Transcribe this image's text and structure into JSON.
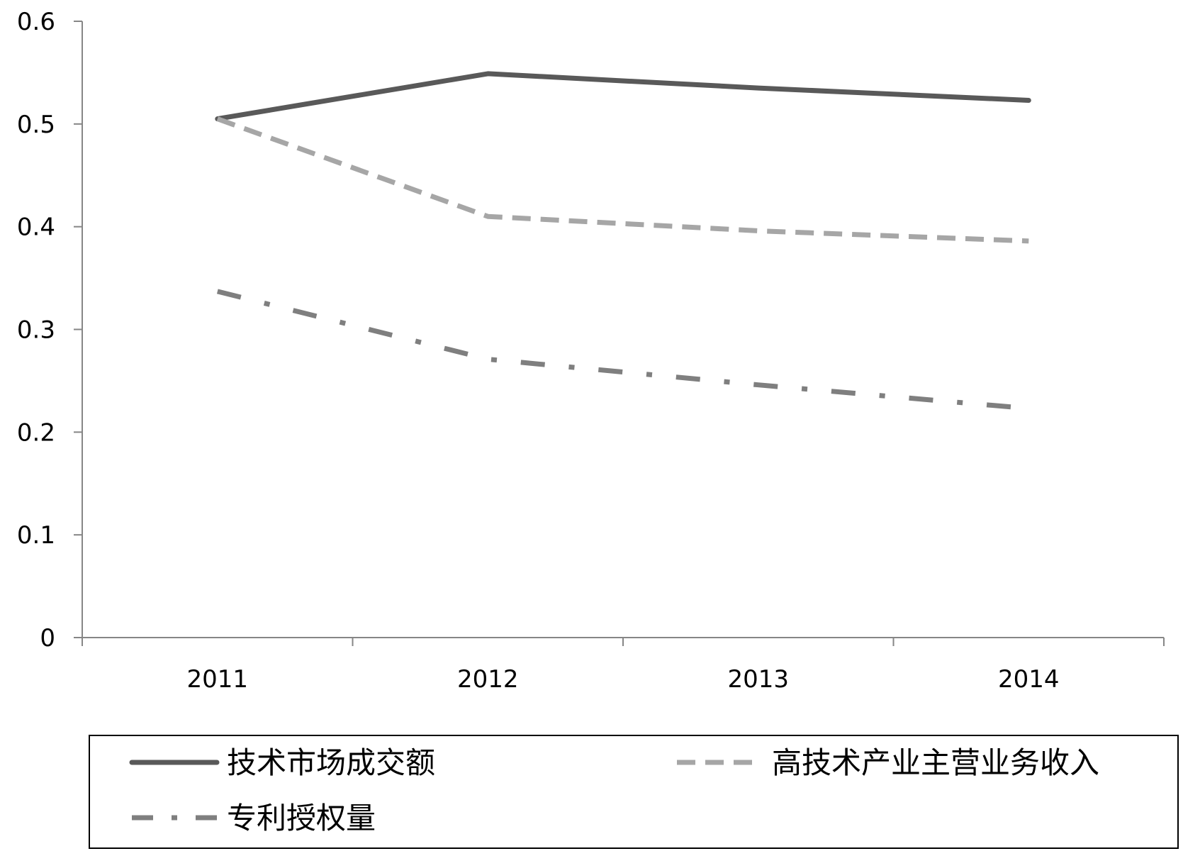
{
  "chart_data": {
    "type": "line",
    "title": "",
    "xlabel": "",
    "ylabel": "",
    "categories": [
      "2011",
      "2012",
      "2013",
      "2014"
    ],
    "ylim": [
      0,
      0.6
    ],
    "yticks": [
      "0",
      "0.1",
      "0.2",
      "0.3",
      "0.4",
      "0.5",
      "0.6"
    ],
    "grid": false,
    "legend_position": "bottom",
    "series": [
      {
        "name": "技术市场成交额",
        "values": [
          0.505,
          0.549,
          0.535,
          0.523
        ],
        "color": "#595959",
        "style": "solid"
      },
      {
        "name": "高技术产业主营业务收入",
        "values": [
          0.505,
          0.41,
          0.396,
          0.386
        ],
        "color": "#a6a6a6",
        "style": "dashed"
      },
      {
        "name": "专利授权量",
        "values": [
          0.337,
          0.271,
          0.246,
          0.223
        ],
        "color": "#7f7f7f",
        "style": "dash-dot"
      }
    ]
  }
}
